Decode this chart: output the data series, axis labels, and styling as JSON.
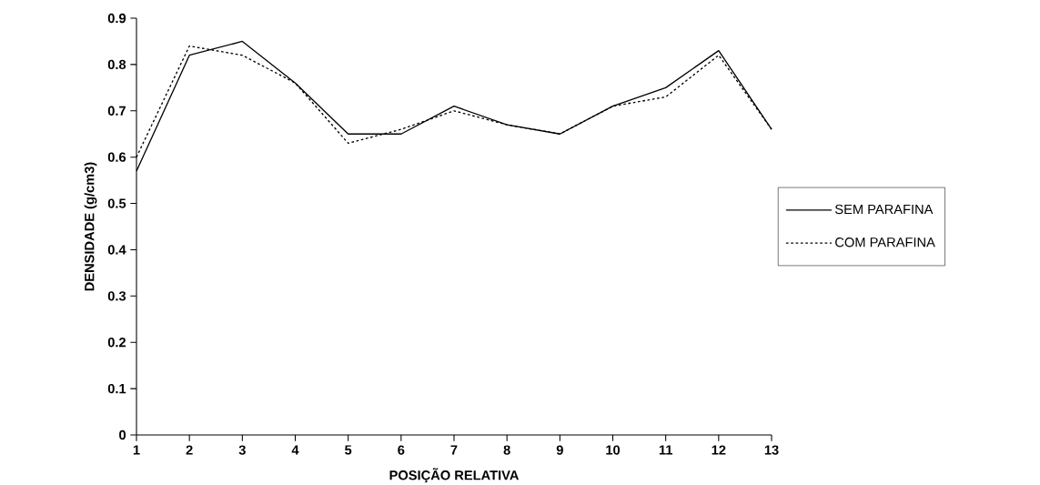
{
  "chart_data": {
    "type": "line",
    "xlabel": "POSIÇÃO RELATIVA",
    "ylabel": "DENSIDADE (g/cm3)",
    "x": [
      1,
      2,
      3,
      4,
      5,
      6,
      7,
      8,
      9,
      10,
      11,
      12,
      13
    ],
    "series": [
      {
        "name": "SEM PARAFINA",
        "color": "#000000",
        "line_style": "solid",
        "values": [
          0.57,
          0.82,
          0.85,
          0.76,
          0.65,
          0.65,
          0.71,
          0.67,
          0.65,
          0.71,
          0.75,
          0.83,
          0.66
        ]
      },
      {
        "name": "COM PARAFINA",
        "color": "#000000",
        "line_style": "dashed",
        "values": [
          0.6,
          0.84,
          0.82,
          0.76,
          0.63,
          0.66,
          0.7,
          0.67,
          0.65,
          0.71,
          0.73,
          0.82,
          0.66
        ]
      }
    ],
    "xlim": [
      1,
      13
    ],
    "xticks": [
      1,
      2,
      3,
      4,
      5,
      6,
      7,
      8,
      9,
      10,
      11,
      12,
      13
    ],
    "ylim": [
      0,
      0.9
    ],
    "yticks": [
      0,
      0.1,
      0.2,
      0.3,
      0.4,
      0.5,
      0.6,
      0.7,
      0.8,
      0.9
    ],
    "grid": false,
    "legend": "right",
    "marker": "none"
  }
}
